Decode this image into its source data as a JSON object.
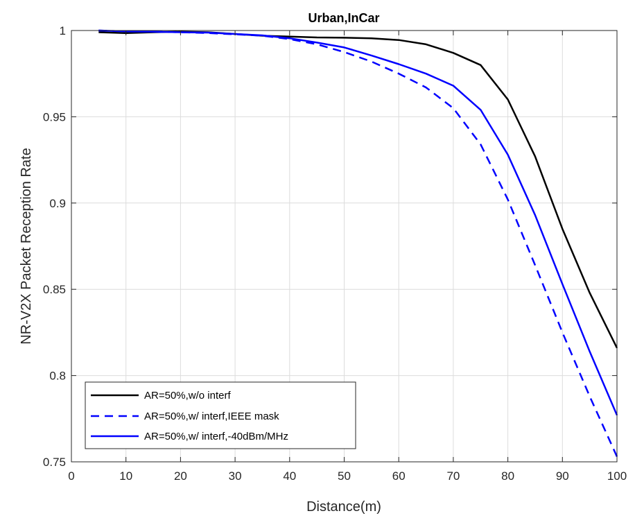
{
  "chart_data": {
    "type": "line",
    "title": "Urban,InCar",
    "xlabel": "Distance(m)",
    "ylabel": "NR-V2X Packet Reception Rate",
    "xlim": [
      0,
      100
    ],
    "ylim": [
      0.75,
      1
    ],
    "xticks": [
      0,
      10,
      20,
      30,
      40,
      50,
      60,
      70,
      80,
      90,
      100
    ],
    "yticks": [
      0.75,
      0.8,
      0.85,
      0.9,
      0.95,
      1
    ],
    "ytick_labels": [
      "0.75",
      "0.8",
      "0.85",
      "0.9",
      "0.95",
      "1"
    ],
    "grid": true,
    "legend_position": "bottom-left",
    "series": [
      {
        "name": "AR=50%,w/o interf",
        "color": "#000000",
        "dash": "solid",
        "x": [
          5,
          10,
          15,
          20,
          25,
          30,
          35,
          40,
          45,
          50,
          55,
          60,
          65,
          70,
          75,
          80,
          85,
          90,
          95,
          100
        ],
        "y": [
          0.999,
          0.9985,
          0.999,
          0.9993,
          0.999,
          0.998,
          0.997,
          0.9965,
          0.996,
          0.9958,
          0.9955,
          0.9945,
          0.992,
          0.987,
          0.98,
          0.96,
          0.927,
          0.885,
          0.848,
          0.816
        ]
      },
      {
        "name": "AR=50%,w/ interf,IEEE mask",
        "color": "#0000ff",
        "dash": "dashed",
        "x": [
          5,
          10,
          15,
          20,
          25,
          30,
          35,
          40,
          45,
          50,
          55,
          60,
          65,
          70,
          75,
          80,
          85,
          90,
          95,
          100
        ],
        "y": [
          1.0,
          0.9995,
          0.9993,
          0.999,
          0.9985,
          0.9978,
          0.997,
          0.995,
          0.992,
          0.9875,
          0.982,
          0.975,
          0.967,
          0.955,
          0.934,
          0.902,
          0.864,
          0.825,
          0.788,
          0.753
        ]
      },
      {
        "name": "AR=50%,w/ interf,-40dBm/MHz",
        "color": "#0000ff",
        "dash": "solid",
        "x": [
          5,
          10,
          15,
          20,
          25,
          30,
          35,
          40,
          45,
          50,
          55,
          60,
          65,
          70,
          75,
          80,
          85,
          90,
          95,
          100
        ],
        "y": [
          1.0,
          0.9995,
          0.9993,
          0.999,
          0.9988,
          0.998,
          0.9972,
          0.9955,
          0.993,
          0.9902,
          0.9855,
          0.9805,
          0.975,
          0.968,
          0.954,
          0.928,
          0.893,
          0.853,
          0.814,
          0.777
        ]
      }
    ]
  }
}
